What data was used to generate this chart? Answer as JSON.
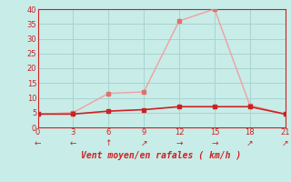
{
  "xlabel": "Vent moyen/en rafales ( km/h )",
  "xlim": [
    0,
    21
  ],
  "ylim": [
    0,
    40
  ],
  "xticks": [
    0,
    3,
    6,
    9,
    12,
    15,
    18,
    21
  ],
  "yticks": [
    0,
    5,
    10,
    15,
    20,
    25,
    30,
    35,
    40
  ],
  "bg_color": "#c8ece8",
  "grid_color": "#a8d4d0",
  "line1_x": [
    0,
    3,
    6,
    9,
    12,
    15,
    18,
    21
  ],
  "line1_y": [
    4.5,
    5.0,
    11.5,
    12.0,
    36.0,
    40.0,
    7.5,
    4.5
  ],
  "line1_color": "#f0a0a0",
  "line1_marker_color": "#e07070",
  "line2_x": [
    0,
    3,
    6,
    9,
    12,
    15,
    18,
    21
  ],
  "line2_y": [
    4.5,
    4.5,
    5.5,
    6.0,
    7.0,
    7.0,
    7.0,
    4.5
  ],
  "line2_color": "#cc2222",
  "line2_marker_color": "#cc2222",
  "arrow_symbols": [
    "←",
    "←",
    "↑",
    "↗",
    "→",
    "→",
    "↗",
    "↗"
  ],
  "label_color": "#cc2222",
  "spine_color": "#cc2222"
}
